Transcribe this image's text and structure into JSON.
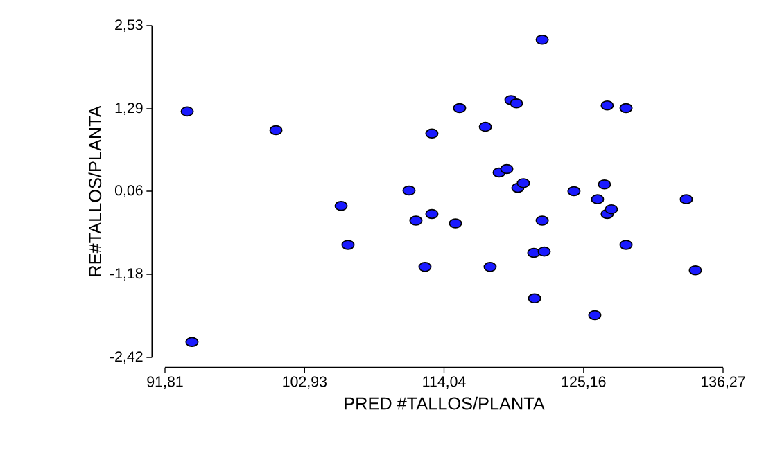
{
  "chart_data": {
    "type": "scatter",
    "xlabel": "PRED #TALLOS/PLANTA",
    "ylabel": "RE#TALLOS/PLANTA",
    "x": [
      93.58,
      93.96,
      100.65,
      105.84,
      106.39,
      111.25,
      111.8,
      112.52,
      113.07,
      113.07,
      114.95,
      115.28,
      117.33,
      117.71,
      118.43,
      119.04,
      119.37,
      119.81,
      119.92,
      120.36,
      121.19,
      121.25,
      121.86,
      121.86,
      122.02,
      124.39,
      126.05,
      126.27,
      126.82,
      127.04,
      127.04,
      127.37,
      128.54,
      128.54,
      133.34,
      134.06
    ],
    "values": [
      1.25,
      -2.19,
      0.97,
      -0.16,
      -0.74,
      0.07,
      -0.38,
      -1.07,
      0.92,
      -0.28,
      -0.42,
      1.3,
      1.02,
      -1.07,
      0.34,
      0.39,
      1.42,
      1.37,
      0.11,
      0.18,
      -0.86,
      -1.54,
      2.32,
      -0.38,
      -0.84,
      0.06,
      -1.79,
      -0.06,
      0.16,
      1.34,
      -0.28,
      -0.21,
      1.3,
      -0.74,
      -0.06,
      -1.12
    ],
    "color": "#1a1aff",
    "marker": "circle",
    "xlim": [
      91.81,
      136.27
    ],
    "ylim": [
      -2.42,
      2.53
    ],
    "xticks": [
      {
        "value": 91.81,
        "label": "91,81"
      },
      {
        "value": 102.93,
        "label": "102,93"
      },
      {
        "value": 114.04,
        "label": "114,04"
      },
      {
        "value": 125.16,
        "label": "125,16"
      },
      {
        "value": 136.27,
        "label": "136,27"
      }
    ],
    "yticks": [
      {
        "value": -2.42,
        "label": "-2,42"
      },
      {
        "value": -1.18,
        "label": "-1,18"
      },
      {
        "value": 0.06,
        "label": "0,06"
      },
      {
        "value": 1.29,
        "label": "1,29"
      },
      {
        "value": 2.53,
        "label": "2,53"
      }
    ]
  }
}
